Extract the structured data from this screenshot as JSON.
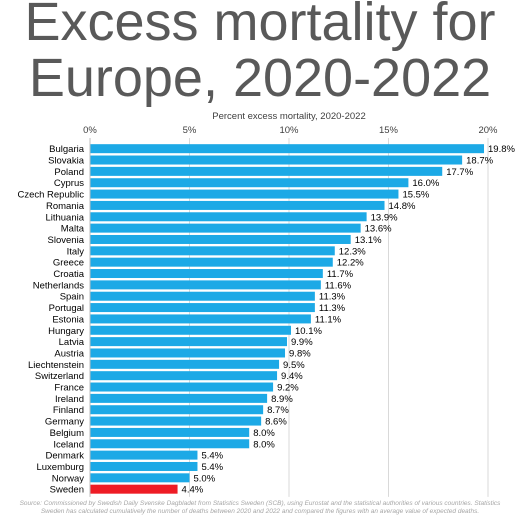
{
  "chart_data": {
    "type": "bar",
    "orientation": "horizontal",
    "title": "Excess mortality for\nEurope, 2020-2022",
    "xlabel": "Percent excess mortality, 2020-2022",
    "xlim": [
      0,
      20
    ],
    "xticks": [
      "0%",
      "5%",
      "10%",
      "15%",
      "20%"
    ],
    "grid": true,
    "bar_color": "#1CA9E6",
    "highlight_color": "#EE1C25",
    "highlight_category": "Sweden",
    "categories": [
      "Bulgaria",
      "Slovakia",
      "Poland",
      "Cyprus",
      "Czech Republic",
      "Romania",
      "Lithuania",
      "Malta",
      "Slovenia",
      "Italy",
      "Greece",
      "Croatia",
      "Netherlands",
      "Spain",
      "Portugal",
      "Estonia",
      "Hungary",
      "Latvia",
      "Austria",
      "Liechtenstein",
      "Switzerland",
      "France",
      "Ireland",
      "Finland",
      "Germany",
      "Belgium",
      "Iceland",
      "Denmark",
      "Luxemburg",
      "Norway",
      "Sweden"
    ],
    "values": [
      19.8,
      18.7,
      17.7,
      16.0,
      15.5,
      14.8,
      13.9,
      13.6,
      13.1,
      12.3,
      12.2,
      11.7,
      11.6,
      11.3,
      11.3,
      11.1,
      10.1,
      9.9,
      9.8,
      9.5,
      9.4,
      9.2,
      8.9,
      8.7,
      8.6,
      8.0,
      8.0,
      5.4,
      5.4,
      5.0,
      4.4
    ],
    "labels": [
      "19.8%",
      "18.7%",
      "17.7%",
      "16.0%",
      "15.5%",
      "14.8%",
      "13.9%",
      "13.6%",
      "13.1%",
      "12.3%",
      "12.2%",
      "11.7%",
      "11.6%",
      "11.3%",
      "11.3%",
      "11.1%",
      "10.1%",
      "9.9%",
      "9.8%",
      "9.5%",
      "9.4%",
      "9.2%",
      "8.9%",
      "8.7%",
      "8.6%",
      "8.0%",
      "8.0%",
      "5.4%",
      "5.4%",
      "5.0%",
      "4.4%"
    ]
  },
  "source_text": "Source: Commissioned by Swedish Daily Svenske Dagbladet from Statistics Sweden (SCB), using Eurostat and the statistical authorities of various countries. Statistics Sweden has calculated cumulatively the number of deaths between 2020 and 2022 and compared the figures with an average value of expected deaths."
}
